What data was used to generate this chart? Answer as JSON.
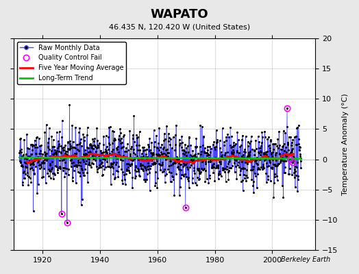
{
  "title": "WAPATO",
  "subtitle": "46.435 N, 120.420 W (United States)",
  "ylabel": "Temperature Anomaly (°C)",
  "credit": "Berkeley Earth",
  "ylim": [
    -15,
    20
  ],
  "yticks": [
    -15,
    -10,
    -5,
    0,
    5,
    10,
    15,
    20
  ],
  "xlim": [
    1910,
    2015
  ],
  "xticks": [
    1920,
    1940,
    1960,
    1980,
    2000
  ],
  "bg_color": "#e8e8e8",
  "plot_bg_color": "#ffffff",
  "raw_line_color": "#4444ff",
  "raw_dot_color": "#000000",
  "qc_fail_color": "#ff00ff",
  "ma_color": "#ff0000",
  "trend_color": "#00cc00",
  "seed": 42,
  "n_years": 98,
  "start_year": 1912,
  "months_per_year": 12
}
